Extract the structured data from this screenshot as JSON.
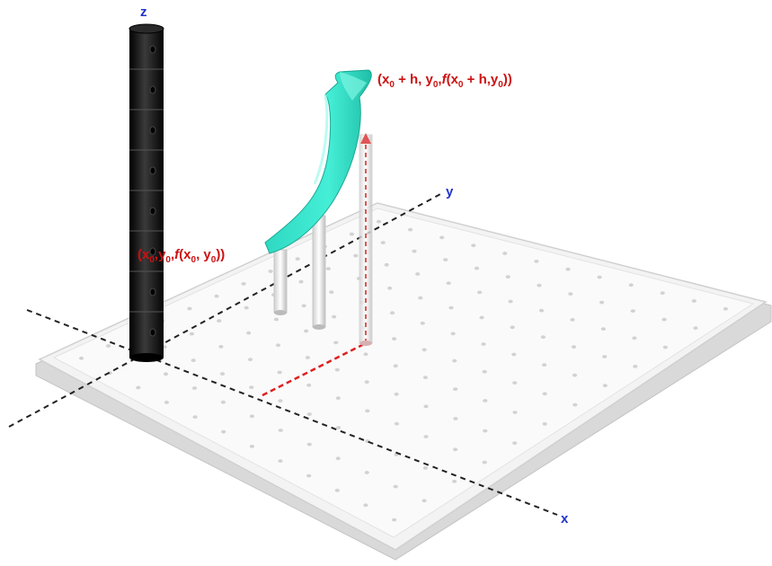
{
  "axes": {
    "x_label": "x",
    "y_label": "y",
    "z_label": "z"
  },
  "points": {
    "p0": {
      "pre": "(x",
      "sub1": "0",
      "mid1": ",y",
      "sub2": "0",
      "mid2": ",",
      "f": "f",
      "mid3": "(x",
      "sub3": "0",
      "mid4": ", y",
      "sub4": "0",
      "post": "))"
    },
    "p1": {
      "pre": "(x",
      "sub1": "0",
      "mid1": " + h, y",
      "sub2": "0",
      "mid2": ",",
      "f": "f",
      "mid3": "(x",
      "sub3": "0",
      "mid4": " + h,y",
      "sub4": "0",
      "post": "))"
    }
  },
  "colors": {
    "axis_label": "#2233cc",
    "point_label": "#cc1111",
    "surface": "#33e0c8",
    "pegboard": "#f4f4f4",
    "column": "#111111",
    "dashed_red": "#e02020",
    "dashed_black": "#222222"
  }
}
